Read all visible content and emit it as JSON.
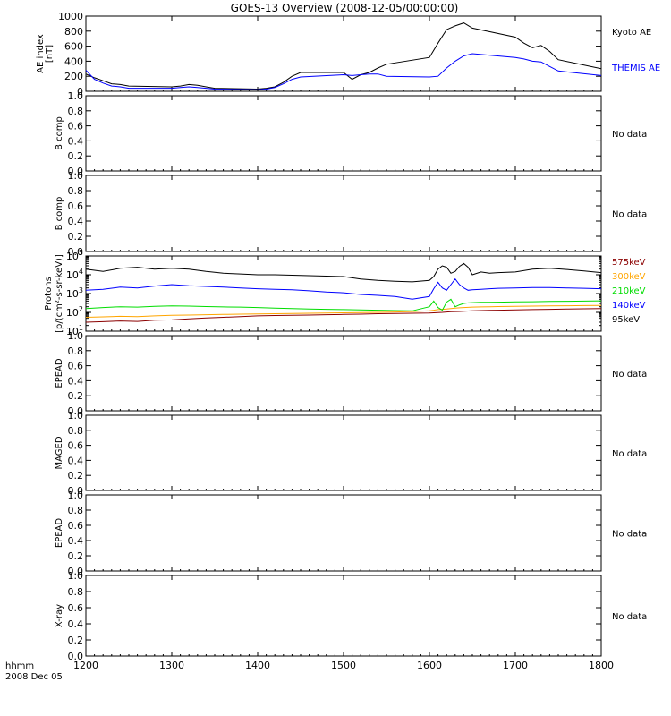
{
  "title": "GOES-13 Overview (2008-12-05/00:00:00)",
  "x_axis": {
    "ticks": [
      "1200",
      "1300",
      "1400",
      "1500",
      "1600",
      "1700",
      "1800"
    ],
    "label_line1": "hhmm",
    "label_line2": "2008 Dec 05"
  },
  "no_data_label": "No data",
  "colors": {
    "black": "#000000",
    "blue": "#0000ff",
    "green": "#00dd00",
    "orange": "#ffa500",
    "darkred": "#8b0000"
  },
  "chart_data": [
    {
      "type": "line",
      "panel": "ae",
      "ylabel_line1": "AE index",
      "ylabel_line2": "[nT]",
      "ylim": [
        0,
        1000
      ],
      "yticks": [
        "0",
        "200",
        "400",
        "600",
        "800",
        "1000"
      ],
      "x": [
        1200,
        1210,
        1220,
        1230,
        1240,
        1250,
        1300,
        1310,
        1320,
        1330,
        1340,
        1350,
        1400,
        1410,
        1420,
        1430,
        1440,
        1450,
        1500,
        1510,
        1520,
        1530,
        1540,
        1550,
        1600,
        1610,
        1620,
        1630,
        1640,
        1650,
        1700,
        1710,
        1720,
        1730,
        1740,
        1750,
        1800
      ],
      "series": [
        {
          "name": "Kyoto AE",
          "color": "black",
          "values": [
            230,
            180,
            140,
            100,
            90,
            70,
            60,
            70,
            90,
            80,
            60,
            40,
            30,
            40,
            60,
            120,
            200,
            250,
            250,
            160,
            220,
            250,
            310,
            360,
            450,
            640,
            820,
            870,
            910,
            840,
            720,
            640,
            580,
            610,
            530,
            420,
            300
          ]
        },
        {
          "name": "THEMIS AE",
          "color": "blue",
          "values": [
            280,
            160,
            110,
            70,
            60,
            40,
            40,
            50,
            60,
            50,
            40,
            30,
            20,
            30,
            50,
            100,
            160,
            190,
            220,
            210,
            220,
            230,
            230,
            200,
            190,
            200,
            310,
            400,
            470,
            500,
            450,
            430,
            400,
            390,
            330,
            270,
            210
          ]
        }
      ]
    },
    {
      "type": "line",
      "panel": "empty",
      "ylabel": "B comp",
      "ylim": [
        0,
        1
      ],
      "yticks": [
        "0.0",
        "0.2",
        "0.4",
        "0.6",
        "0.8",
        "1.0"
      ],
      "series": []
    },
    {
      "type": "line",
      "panel": "empty",
      "ylabel": "B comp",
      "ylim": [
        0,
        1
      ],
      "yticks": [
        "0.0",
        "0.2",
        "0.4",
        "0.6",
        "0.8",
        "1.0"
      ],
      "series": []
    },
    {
      "type": "line",
      "panel": "protons",
      "ylabel_line1": "Protons",
      "ylabel_line2": "[p/(cm²-s-sr-keV)]",
      "log": true,
      "ylim": [
        10,
        100000
      ],
      "yticks": [
        {
          "base": "10",
          "exp": "1"
        },
        {
          "base": "10",
          "exp": "2"
        },
        {
          "base": "10",
          "exp": "3"
        },
        {
          "base": "10",
          "exp": "4"
        },
        {
          "base": "10",
          "exp": "5"
        }
      ],
      "x": [
        1200,
        1220,
        1240,
        1260,
        1280,
        1300,
        1320,
        1340,
        1360,
        1380,
        1400,
        1420,
        1440,
        1460,
        1480,
        1500,
        1520,
        1540,
        1560,
        1580,
        1600,
        1605,
        1610,
        1615,
        1620,
        1625,
        1630,
        1635,
        1640,
        1645,
        1650,
        1660,
        1670,
        1680,
        1700,
        1720,
        1740,
        1760,
        1780,
        1800
      ],
      "series": [
        {
          "name": "575keV",
          "color": "darkred",
          "values": [
            30,
            32,
            35,
            33,
            38,
            40,
            45,
            50,
            55,
            60,
            65,
            68,
            70,
            72,
            75,
            78,
            80,
            85,
            88,
            90,
            92,
            95,
            98,
            100,
            105,
            108,
            110,
            112,
            115,
            118,
            120,
            125,
            128,
            130,
            135,
            140,
            145,
            150,
            155,
            160
          ]
        },
        {
          "name": "300keV",
          "color": "orange",
          "values": [
            55,
            58,
            62,
            60,
            65,
            70,
            72,
            75,
            78,
            80,
            82,
            85,
            88,
            90,
            92,
            95,
            98,
            100,
            105,
            110,
            120,
            130,
            140,
            145,
            150,
            160,
            170,
            175,
            180,
            185,
            190,
            195,
            200,
            205,
            210,
            215,
            220,
            225,
            230,
            235
          ]
        },
        {
          "name": "210keV",
          "color": "green",
          "values": [
            160,
            180,
            200,
            190,
            210,
            220,
            215,
            205,
            195,
            190,
            180,
            170,
            160,
            150,
            145,
            140,
            135,
            130,
            125,
            120,
            200,
            400,
            180,
            130,
            350,
            500,
            200,
            250,
            300,
            320,
            330,
            340,
            340,
            350,
            360,
            370,
            380,
            390,
            400,
            410
          ]
        },
        {
          "name": "140keV",
          "color": "blue",
          "values": [
            1500,
            1700,
            2200,
            2000,
            2500,
            3000,
            2600,
            2400,
            2200,
            2000,
            1800,
            1700,
            1600,
            1400,
            1200,
            1100,
            900,
            800,
            700,
            500,
            700,
            1800,
            4000,
            2000,
            1500,
            3000,
            6000,
            3000,
            2000,
            1500,
            1600,
            1700,
            1800,
            1900,
            2000,
            2100,
            2100,
            2000,
            1900,
            1800
          ]
        },
        {
          "name": "95keV",
          "color": "black",
          "values": [
            20000,
            15000,
            22000,
            25000,
            20000,
            22000,
            20000,
            15000,
            12000,
            11000,
            10000,
            10000,
            9500,
            9000,
            8500,
            8000,
            6000,
            5000,
            4500,
            4200,
            5000,
            8000,
            20000,
            30000,
            25000,
            12000,
            15000,
            28000,
            40000,
            25000,
            10000,
            14000,
            12000,
            13000,
            14000,
            20000,
            22000,
            19000,
            16000,
            13000
          ]
        }
      ]
    },
    {
      "type": "line",
      "panel": "empty",
      "ylabel": "EPEAD",
      "ylim": [
        0,
        1
      ],
      "yticks": [
        "0.0",
        "0.2",
        "0.4",
        "0.6",
        "0.8",
        "1.0"
      ],
      "series": []
    },
    {
      "type": "line",
      "panel": "empty",
      "ylabel": "MAGED",
      "ylim": [
        0,
        1
      ],
      "yticks": [
        "0.0",
        "0.2",
        "0.4",
        "0.6",
        "0.8",
        "1.0"
      ],
      "series": []
    },
    {
      "type": "line",
      "panel": "empty",
      "ylabel": "EPEAD",
      "ylim": [
        0,
        1
      ],
      "yticks": [
        "0.0",
        "0.2",
        "0.4",
        "0.6",
        "0.8",
        "1.0"
      ],
      "series": []
    },
    {
      "type": "line",
      "panel": "empty",
      "ylabel": "X-ray",
      "ylim": [
        0,
        1
      ],
      "yticks": [
        "0.0",
        "0.2",
        "0.4",
        "0.6",
        "0.8",
        "1.0"
      ],
      "series": []
    }
  ]
}
